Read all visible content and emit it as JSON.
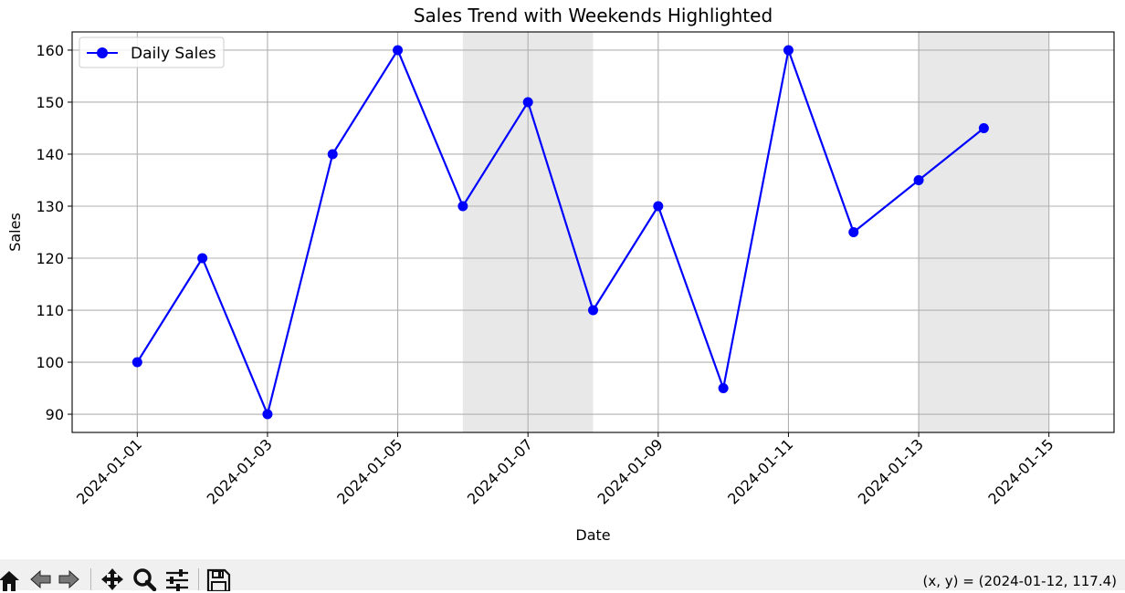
{
  "window": {
    "coordinates_readout": "(x, y) = (2024-01-12, 117.4)"
  },
  "toolbar": {
    "buttons": [
      {
        "name": "home",
        "icon": "home-icon"
      },
      {
        "name": "back",
        "icon": "back-arrow-icon"
      },
      {
        "name": "forward",
        "icon": "forward-arrow-icon"
      },
      {
        "name": "pan",
        "icon": "pan-icon"
      },
      {
        "name": "zoom",
        "icon": "zoom-icon"
      },
      {
        "name": "configure",
        "icon": "sliders-icon"
      },
      {
        "name": "save",
        "icon": "save-icon"
      }
    ]
  },
  "chart_data": {
    "type": "line",
    "title": "Sales Trend with Weekends Highlighted",
    "xlabel": "Date",
    "ylabel": "Sales",
    "x": [
      "2024-01-01",
      "2024-01-02",
      "2024-01-03",
      "2024-01-04",
      "2024-01-05",
      "2024-01-06",
      "2024-01-07",
      "2024-01-08",
      "2024-01-09",
      "2024-01-10",
      "2024-01-11",
      "2024-01-12",
      "2024-01-13",
      "2024-01-14"
    ],
    "series": [
      {
        "name": "Daily Sales",
        "values": [
          100,
          120,
          90,
          140,
          160,
          130,
          150,
          110,
          130,
          95,
          160,
          125,
          135,
          145
        ],
        "color": "#0000ff",
        "marker": "circle"
      }
    ],
    "weekend_spans": [
      [
        "2024-01-06",
        "2024-01-08"
      ],
      [
        "2024-01-13",
        "2024-01-15"
      ]
    ],
    "weekend_color": "#e8e8e8",
    "xlim": [
      "2023-12-31",
      "2024-01-16"
    ],
    "ylim": [
      86.5,
      163.5
    ],
    "x_ticks": [
      "2024-01-01",
      "2024-01-03",
      "2024-01-05",
      "2024-01-07",
      "2024-01-09",
      "2024-01-11",
      "2024-01-13",
      "2024-01-15"
    ],
    "y_ticks": [
      90,
      100,
      110,
      120,
      130,
      140,
      150,
      160
    ],
    "grid": true,
    "legend_position": "top-left"
  }
}
